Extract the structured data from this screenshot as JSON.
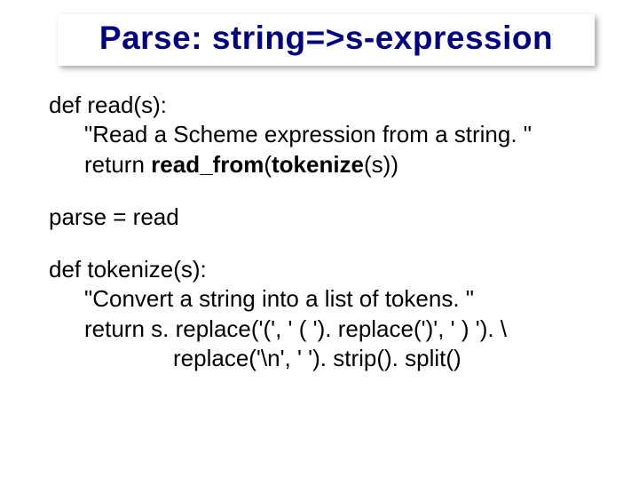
{
  "title": "Parse: string=>s-expression",
  "colors": {
    "title_color": "#000080",
    "text_color": "#000000",
    "background": "#ffffff"
  },
  "typography": {
    "title_fontsize": 37,
    "body_fontsize": 26,
    "font_family": "Arial"
  },
  "code": {
    "block1": {
      "line1": "def read(s):",
      "line2": "\"Read a Scheme expression from a string. \"",
      "line3_prefix": "return ",
      "line3_bold": "read_from",
      "line3_mid": "(",
      "line3_bold2": "tokenize",
      "line3_suffix": "(s))"
    },
    "block2": {
      "line1": "parse = read"
    },
    "block3": {
      "line1": "def tokenize(s):",
      "line2": "\"Convert a string into a list of tokens. \"",
      "line3": "return s. replace('(', ' ( '). replace(')', ' ) '). \\",
      "line4": "replace('\\n', ' '). strip(). split()"
    }
  }
}
